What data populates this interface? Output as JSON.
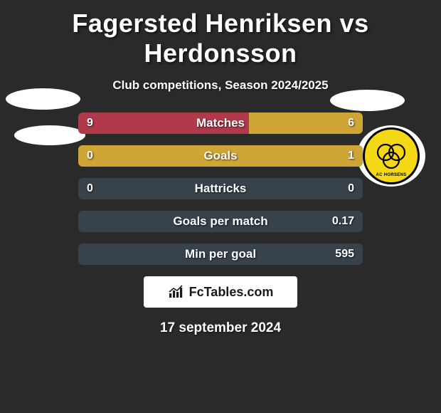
{
  "title": "Fagersted Henriksen vs Herdonsson",
  "subtitle": "Club competitions, Season 2024/2025",
  "date": "17 september 2024",
  "fctables_label": "FcTables.com",
  "badge_text": "AC HORSENS",
  "colors": {
    "background": "#2a2a2a",
    "bar_bg": "#38424a",
    "bar_left_fill": "#b0394a",
    "bar_right_fill": "#cfa536",
    "text": "#ffffff",
    "badge_yellow": "#f5d815",
    "badge_border": "#000000",
    "fctables_bg": "#ffffff"
  },
  "bars": [
    {
      "label": "Matches",
      "left_val": "9",
      "right_val": "6",
      "left_pct": 60,
      "right_pct": 40
    },
    {
      "label": "Goals",
      "left_val": "0",
      "right_val": "1",
      "left_pct": 0,
      "right_pct": 100
    },
    {
      "label": "Hattricks",
      "left_val": "0",
      "right_val": "0",
      "left_pct": 0,
      "right_pct": 0
    },
    {
      "label": "Goals per match",
      "left_val": "",
      "right_val": "0.17",
      "left_pct": 0,
      "right_pct": 0
    },
    {
      "label": "Min per goal",
      "left_val": "",
      "right_val": "595",
      "left_pct": 0,
      "right_pct": 0
    }
  ]
}
